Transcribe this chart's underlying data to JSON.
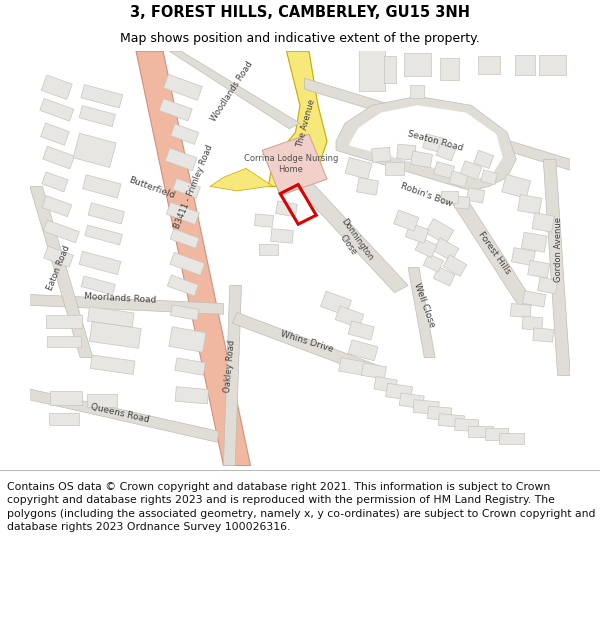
{
  "title_line1": "3, FOREST HILLS, CAMBERLEY, GU15 3NH",
  "title_line2": "Map shows position and indicative extent of the property.",
  "footer_text": "Contains OS data © Crown copyright and database right 2021. This information is subject to Crown copyright and database rights 2023 and is reproduced with the permission of HM Land Registry. The polygons (including the associated geometry, namely x, y co-ordinates) are subject to Crown copyright and database rights 2023 Ordnance Survey 100026316.",
  "title_fontsize": 10.5,
  "subtitle_fontsize": 9,
  "footer_fontsize": 7.8,
  "map_bg_color": "#ffffff",
  "road_yellow": "#f7e87a",
  "road_yellow_edge": "#c8a800",
  "road_salmon": "#f0b8a0",
  "road_salmon_edge": "#d09080",
  "road_gray": "#e0dcd6",
  "road_gray_edge": "#c0bcb8",
  "building_color": "#e8e6e2",
  "building_edge": "#c8c4be",
  "highlight_pink": "#f0d0c8",
  "highlight_pink_edge": "#d0a898",
  "red_polygon_color": "#dd0000",
  "header_bg": "#ffffff",
  "footer_bg": "#ffffff",
  "fig_width": 6.0,
  "fig_height": 6.25,
  "dpi": 100
}
